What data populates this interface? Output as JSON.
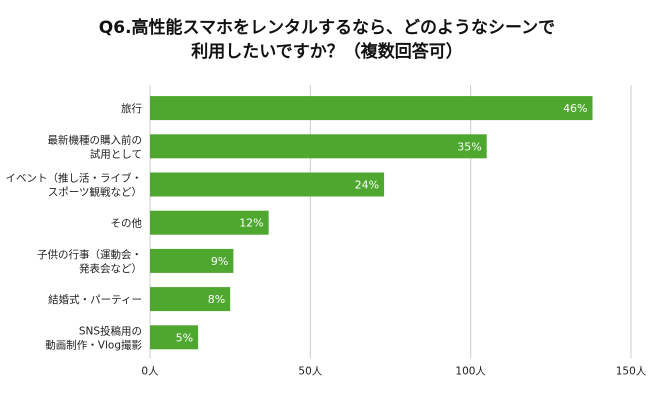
{
  "chart_data": {
    "type": "bar",
    "orientation": "horizontal",
    "title_lines": [
      "Q6.高性能スマホをレンタルするなら、どのようなシーンで",
      "利用したいですか？（複数回答可）"
    ],
    "categories": [
      [
        "旅行"
      ],
      [
        "最新機種の購入前の",
        "試用として"
      ],
      [
        "イベント（推し活・ライブ・",
        "スポーツ観戦など）"
      ],
      [
        "その他"
      ],
      [
        "子供の行事（運動会・",
        "発表会など）"
      ],
      [
        "結婚式・パーティー"
      ],
      [
        "SNS投稿用の",
        "動画制作・Vlog撮影"
      ]
    ],
    "values": [
      138,
      105,
      73,
      37,
      26,
      25,
      15
    ],
    "data_labels": [
      "46%",
      "35%",
      "24%",
      "12%",
      "9%",
      "8%",
      "5%"
    ],
    "x_ticks": [
      0,
      50,
      100,
      150
    ],
    "x_tick_labels": [
      "0人",
      "50人",
      "100人",
      "150人"
    ],
    "xlim": [
      0,
      150
    ],
    "grid": true,
    "legend": "none",
    "colors": {
      "bar": "#4ea72e",
      "grid": "#cccccc",
      "text": "#222222",
      "data_label": "#ffffff"
    }
  }
}
